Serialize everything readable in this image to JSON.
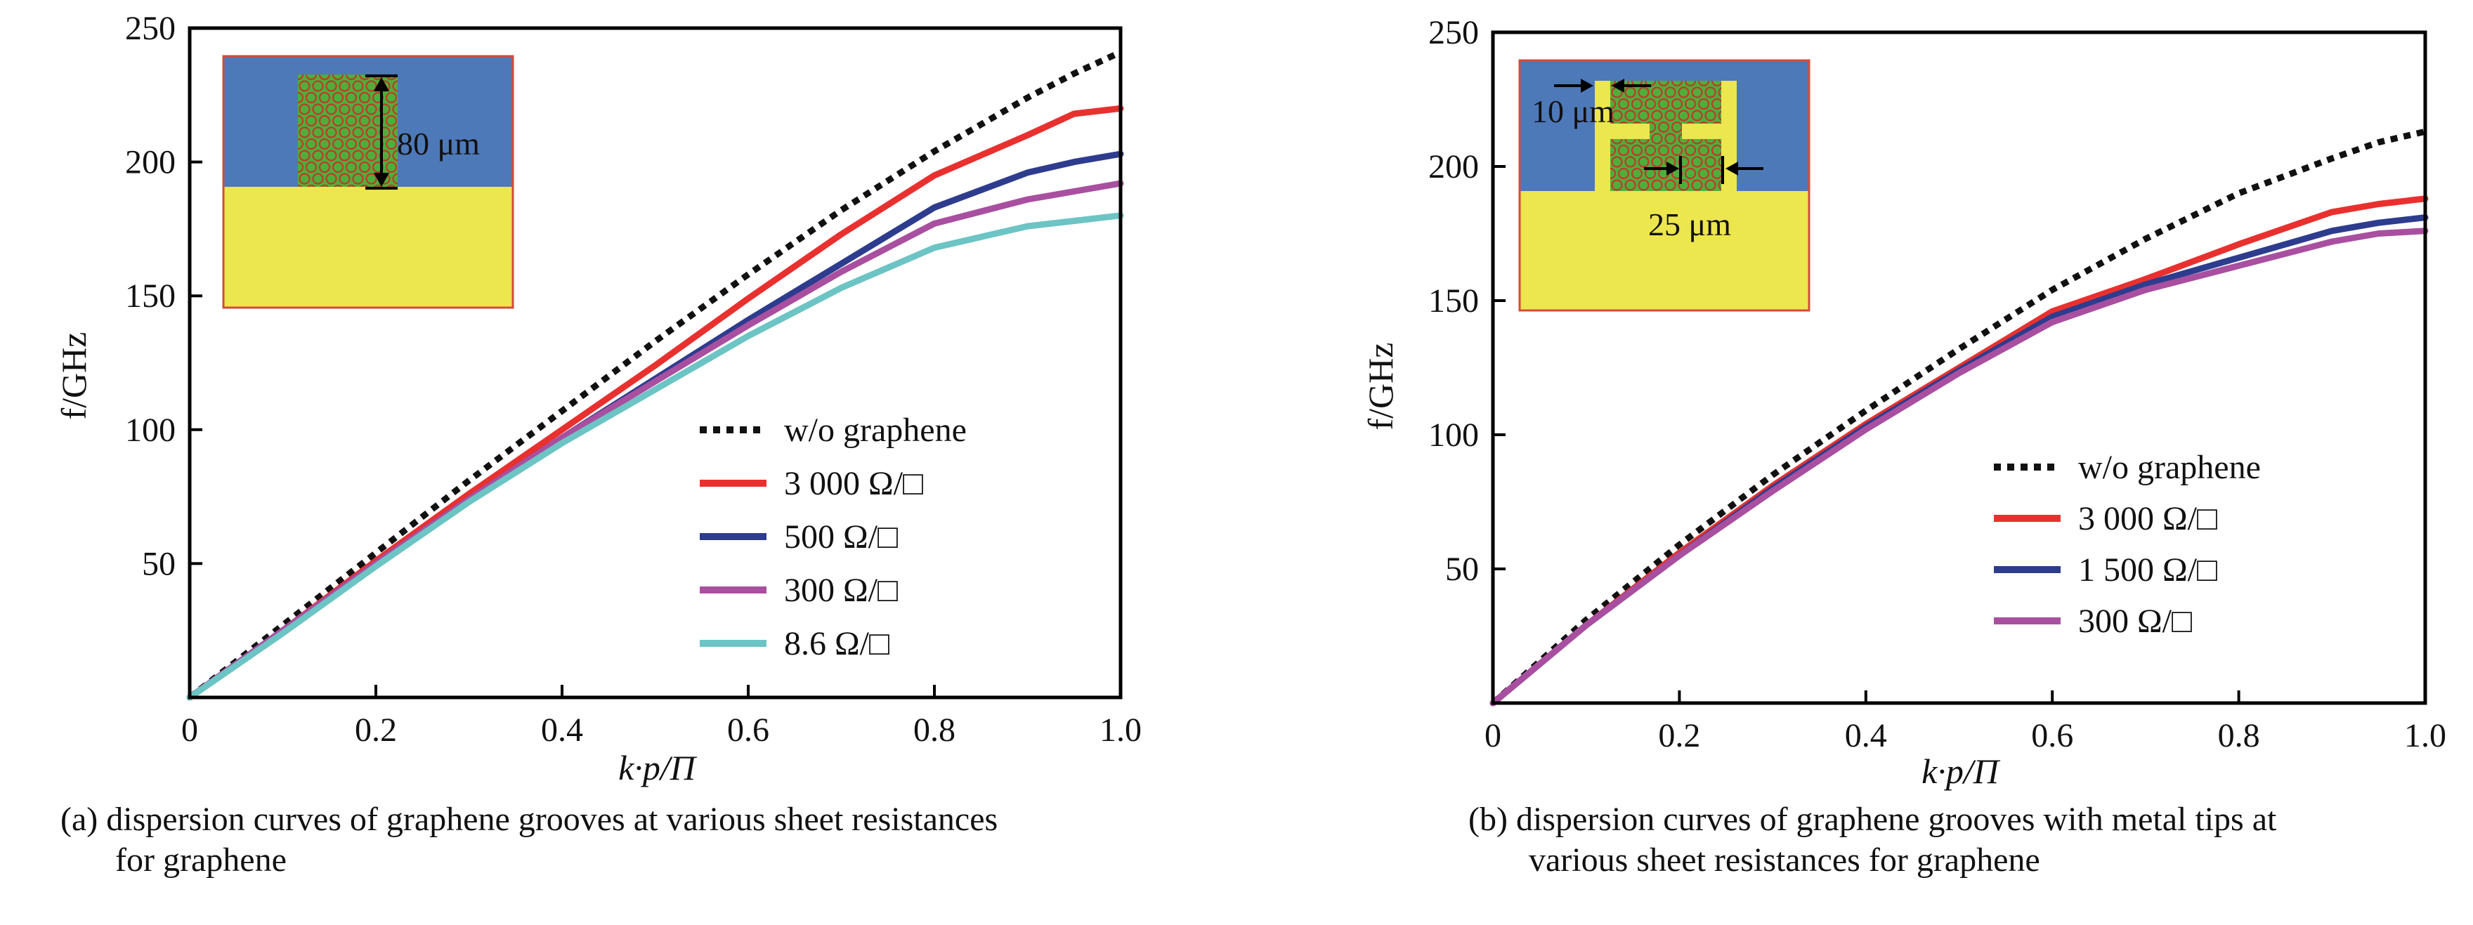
{
  "panels": [
    {
      "id": "a",
      "caption_line1": "(a) dispersion curves of graphene grooves at various sheet resistances",
      "caption_line2": "for graphene",
      "inset": {
        "dimension_label": "80 μm"
      },
      "chart_data": {
        "type": "line",
        "xlabel": "k·p/Π",
        "ylabel": "f/GHz",
        "xlim": [
          0,
          1.0
        ],
        "ylim": [
          0,
          250
        ],
        "xticks": [
          0,
          0.2,
          0.4,
          0.6,
          0.8,
          1.0
        ],
        "xtick_labels": [
          "0",
          "0.2",
          "0.4",
          "0.6",
          "0.8",
          "1.0"
        ],
        "yticks": [
          50,
          100,
          150,
          200,
          250
        ],
        "ytick_labels": [
          "50",
          "100",
          "150",
          "200",
          "250"
        ],
        "grid": false,
        "legend_position": "lower-right",
        "x": [
          0,
          0.1,
          0.2,
          0.3,
          0.4,
          0.5,
          0.6,
          0.7,
          0.8,
          0.9,
          0.95,
          1.0
        ],
        "series": [
          {
            "name": "w/o graphene",
            "color": "#111111",
            "style": "dotted",
            "values": [
              0,
              27,
              54,
              81,
              107,
              133,
              158,
              182,
              204,
              224,
              233,
              241
            ]
          },
          {
            "name": "3 000 Ω/□",
            "color": "#e8312f",
            "style": "solid",
            "values": [
              0,
              25,
              51,
              76,
              100,
              124,
              149,
              173,
              195,
              210,
              218,
              220
            ]
          },
          {
            "name": "500 Ω/□",
            "color": "#2e3c8e",
            "style": "solid",
            "values": [
              0,
              25,
              50,
              74,
              97,
              119,
              141,
              162,
              183,
              196,
              200,
              203
            ]
          },
          {
            "name": "300 Ω/□",
            "color": "#a94fa0",
            "style": "solid",
            "values": [
              0,
              25,
              50,
              74,
              97,
              118,
              139,
              159,
              177,
              186,
              189,
              192
            ]
          },
          {
            "name": "8.6 Ω/□",
            "color": "#6cc4c4",
            "style": "solid",
            "values": [
              0,
              24,
              49,
              73,
              95,
              115,
              135,
              153,
              168,
              176,
              178,
              180
            ]
          }
        ]
      }
    },
    {
      "id": "b",
      "caption_line1": "(b) dispersion curves of graphene grooves with metal tips at",
      "caption_line2": "various sheet resistances for graphene",
      "inset": {
        "dimension_label_1": "10 μm",
        "dimension_label_2": "25 μm"
      },
      "chart_data": {
        "type": "line",
        "xlabel": "k·p/Π",
        "ylabel": "f/GHz",
        "xlim": [
          0,
          1.0
        ],
        "ylim": [
          0,
          250
        ],
        "xticks": [
          0,
          0.2,
          0.4,
          0.6,
          0.8,
          1.0
        ],
        "xtick_labels": [
          "0",
          "0.2",
          "0.4",
          "0.6",
          "0.8",
          "1.0"
        ],
        "yticks": [
          50,
          100,
          150,
          200,
          250
        ],
        "ytick_labels": [
          "50",
          "100",
          "150",
          "200",
          "250"
        ],
        "grid": false,
        "legend_position": "lower-right",
        "x": [
          0,
          0.1,
          0.2,
          0.3,
          0.4,
          0.5,
          0.6,
          0.7,
          0.8,
          0.9,
          0.95,
          1.0
        ],
        "series": [
          {
            "name": "w/o graphene",
            "color": "#111111",
            "style": "dotted",
            "values": [
              0,
              31,
              59,
              85,
              109,
              132,
              154,
              173,
              190,
              203,
              209,
              213
            ]
          },
          {
            "name": "3 000 Ω/□",
            "color": "#e8312f",
            "style": "solid",
            "values": [
              0,
              29,
              56,
              81,
              104,
              125,
              146,
              158,
              171,
              183,
              186,
              188
            ]
          },
          {
            "name": "1 500 Ω/□",
            "color": "#2e3c8e",
            "style": "solid",
            "values": [
              0,
              29,
              55,
              80,
              103,
              124,
              144,
              156,
              166,
              176,
              179,
              181
            ]
          },
          {
            "name": "300 Ω/□",
            "color": "#a94fa0",
            "style": "solid",
            "values": [
              0,
              29,
              55,
              79,
              102,
              123,
              142,
              154,
              163,
              172,
              175,
              176
            ]
          }
        ]
      }
    }
  ]
}
